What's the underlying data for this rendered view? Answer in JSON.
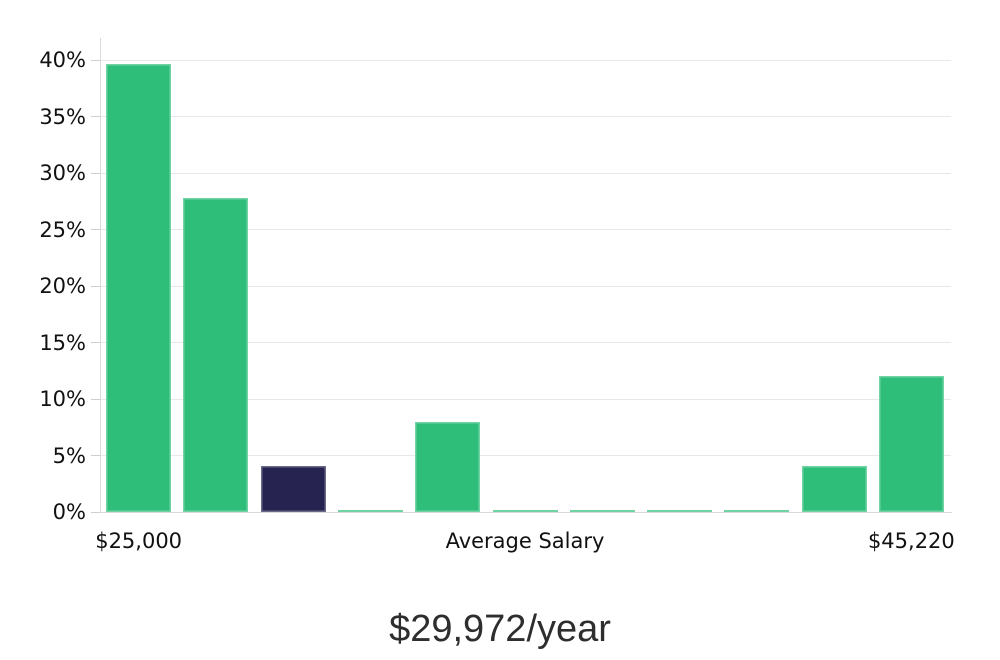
{
  "chart_data": {
    "type": "bar",
    "title": "$29,972/year",
    "description": "Salary distribution histogram, percent of people per salary bucket",
    "ylim": [
      0,
      41.8
    ],
    "grid": true,
    "legend": false,
    "y_ticks": [
      {
        "value": 0,
        "label": "0%"
      },
      {
        "value": 5,
        "label": "5%"
      },
      {
        "value": 10,
        "label": "10%"
      },
      {
        "value": 15,
        "label": "15%"
      },
      {
        "value": 20,
        "label": "20%"
      },
      {
        "value": 25,
        "label": "25%"
      },
      {
        "value": 30,
        "label": "30%"
      },
      {
        "value": 35,
        "label": "35%"
      },
      {
        "value": 40,
        "label": "40%"
      }
    ],
    "bars": [
      {
        "value": 39.7,
        "role": "primary"
      },
      {
        "value": 27.8,
        "role": "primary"
      },
      {
        "value": 4.1,
        "role": "highlight"
      },
      {
        "value": 0.15,
        "role": "primary"
      },
      {
        "value": 8.0,
        "role": "primary"
      },
      {
        "value": 0.15,
        "role": "primary"
      },
      {
        "value": 0.15,
        "role": "primary"
      },
      {
        "value": 0.15,
        "role": "primary"
      },
      {
        "value": 0.15,
        "role": "primary"
      },
      {
        "value": 4.1,
        "role": "primary"
      },
      {
        "value": 12.0,
        "role": "primary"
      }
    ],
    "x_axis_labels": [
      {
        "text": "$25,000",
        "anchor": "first-bar"
      },
      {
        "text": "Average Salary",
        "anchor": "center"
      },
      {
        "text": "$45,220",
        "anchor": "last-bar"
      }
    ],
    "colors": {
      "bar_primary": "#2EBE7A",
      "bar_highlight": "#262350",
      "gridline": "#E8E8E8",
      "axis_line": "#D9D9D9",
      "tick_mark": "#CFCFCF",
      "axis_label_text": "#111111",
      "title_text": "#2E2E2E",
      "background": "#FFFFFF"
    }
  }
}
